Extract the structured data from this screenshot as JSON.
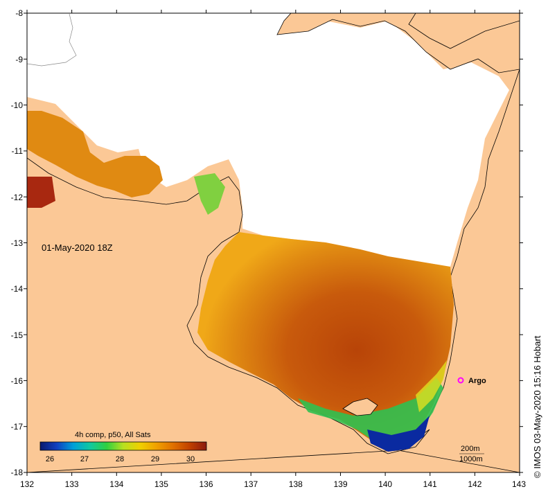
{
  "title_date": "01-May-2020 18Z",
  "credit": "© IMOS 03-May-2020 15:16 Hobart",
  "argo_label": "Argo",
  "argo_position": {
    "lon": 141.7,
    "lat": -16.0
  },
  "axes": {
    "x_ticks": [
      "132",
      "133",
      "134",
      "135",
      "136",
      "137",
      "138",
      "139",
      "140",
      "141",
      "142",
      "143"
    ],
    "y_ticks": [
      "-8",
      "-9",
      "-10",
      "-11",
      "-12",
      "-13",
      "-14",
      "-15",
      "-16",
      "-17",
      "-18"
    ],
    "lon_range": [
      132,
      143
    ],
    "lat_range": [
      -18,
      -8
    ]
  },
  "colorbar": {
    "title": "4h comp, p50, All Sats",
    "tick_labels": [
      "26",
      "27",
      "28",
      "29",
      "30"
    ],
    "range": [
      25.8,
      30.4
    ],
    "stops": [
      "#0a1a6e",
      "#1040c0",
      "#00a0d8",
      "#10c8a0",
      "#30d040",
      "#b8e020",
      "#f0d000",
      "#f0a000",
      "#e07000",
      "#c04000",
      "#8a1a10"
    ]
  },
  "depth_legend": {
    "shallow": "200m",
    "deep": "1000m"
  },
  "colors": {
    "land": "#fbc896",
    "cloud": "#ffffff",
    "sst_warm": "#c8560a",
    "sst_mid": "#e08a10",
    "sst_cool": "#20b050",
    "sst_cold": "#0a2aa0",
    "argo": "#ff00ff"
  }
}
